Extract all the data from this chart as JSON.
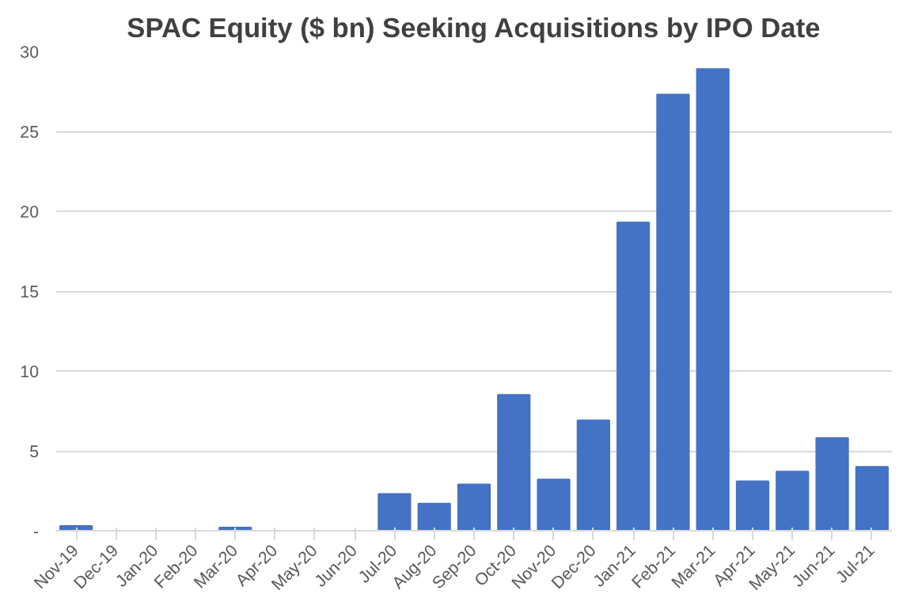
{
  "chart_data": {
    "type": "bar",
    "title": "SPAC Equity ($ bn) Seeking Acquisitions by IPO Date",
    "categories": [
      "Nov-19",
      "Dec-19",
      "Jan-20",
      "Feb-20",
      "Mar-20",
      "Apr-20",
      "May-20",
      "Jun-20",
      "Jul-20",
      "Aug-20",
      "Sep-20",
      "Oct-20",
      "Nov-20",
      "Dec-20",
      "Jan-21",
      "Feb-21",
      "Mar-21",
      "Apr-21",
      "May-21",
      "Jun-21",
      "Jul-21"
    ],
    "values": [
      0.3,
      0,
      0,
      0,
      0.2,
      0,
      0,
      0,
      2.3,
      1.7,
      2.9,
      8.5,
      3.2,
      6.9,
      19.3,
      27.3,
      28.9,
      3.1,
      3.7,
      5.8,
      4.0
    ],
    "color": "#4472c4",
    "ylim": [
      0,
      30
    ],
    "yticks": [
      {
        "value": 0,
        "label": "-"
      },
      5,
      10,
      15,
      20,
      25,
      30
    ],
    "grid": "y"
  }
}
